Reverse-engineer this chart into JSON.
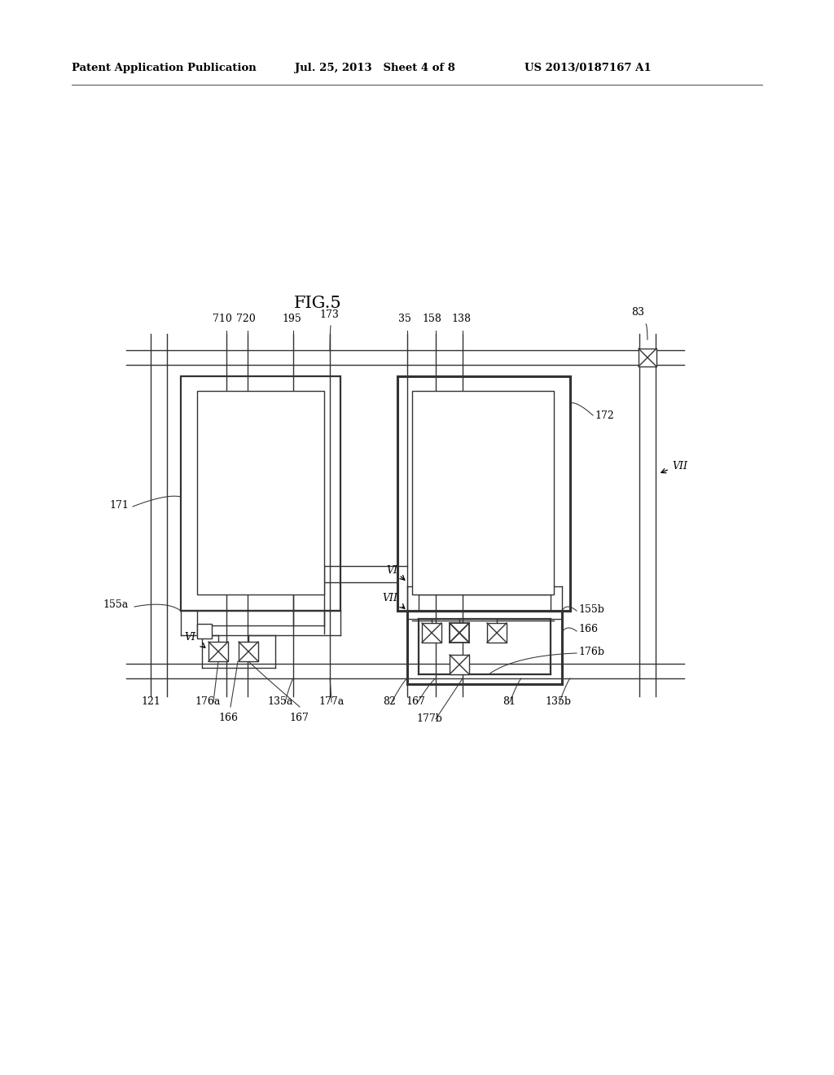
{
  "bg_color": "#ffffff",
  "title": "FIG.5",
  "header_left": "Patent Application Publication",
  "header_mid": "Jul. 25, 2013   Sheet 4 of 8",
  "header_right": "US 2013/0187167 A1",
  "fig_width": 10.24,
  "fig_height": 13.2
}
